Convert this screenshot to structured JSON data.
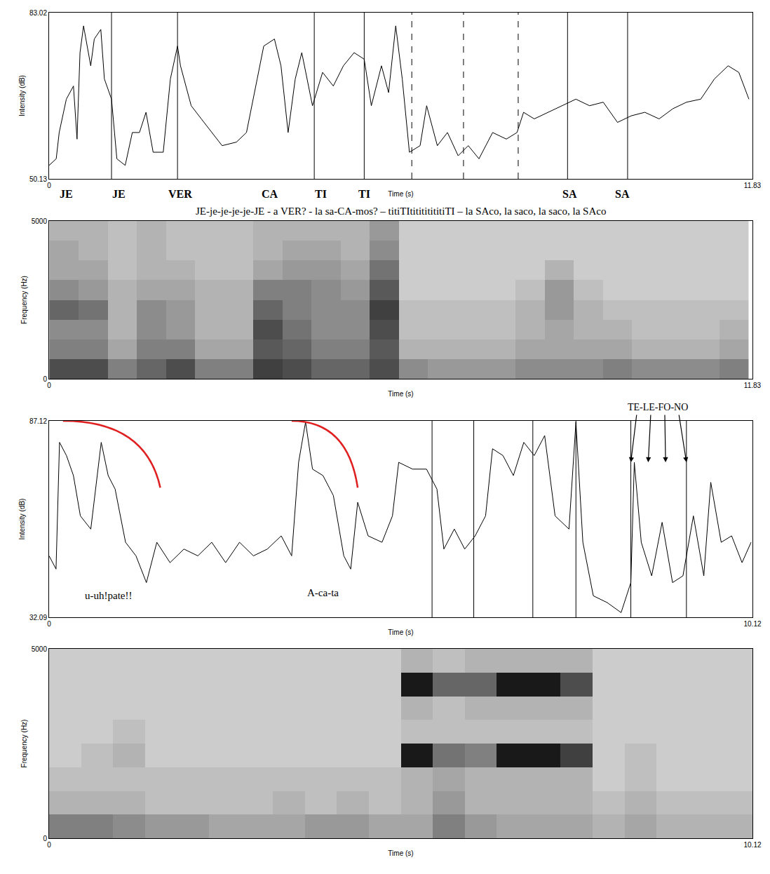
{
  "chart_data": [
    {
      "type": "line",
      "color": "#000000",
      "x": [
        0,
        0.12,
        0.17,
        0.29,
        0.41,
        0.47,
        0.52,
        0.58,
        0.7,
        0.76,
        0.87,
        0.93,
        1.05,
        1.14,
        1.28,
        1.4,
        1.52,
        1.63,
        1.75,
        1.92,
        2.04,
        2.16,
        2.21,
        2.39,
        2.56,
        2.74,
        2.91,
        3.15,
        3.32,
        3.5,
        3.61,
        3.79,
        3.9,
        4.02,
        4.14,
        4.25,
        4.43,
        4.6,
        4.78,
        4.95,
        5.13,
        5.3,
        5.42,
        5.59,
        5.71,
        5.83,
        5.94,
        6.06,
        6.24,
        6.35,
        6.53,
        6.7,
        6.88,
        7.05,
        7.23,
        7.46,
        7.69,
        7.87,
        7.98,
        8.16,
        8.39,
        8.62,
        8.86,
        9.09,
        9.32,
        9.56,
        9.79,
        10.02,
        10.26,
        10.49,
        10.72,
        10.96,
        11.19,
        11.42,
        11.6,
        11.77
      ],
      "values": [
        52.8,
        54.1,
        59.3,
        65.9,
        68.5,
        58.0,
        75.1,
        80.4,
        72.5,
        77.8,
        79.7,
        69.9,
        65.9,
        54.1,
        52.8,
        59.3,
        59.3,
        63.3,
        55.4,
        55.4,
        69.9,
        76.4,
        72.5,
        64.6,
        62.0,
        59.3,
        56.7,
        57.4,
        59.3,
        69.9,
        76.4,
        77.8,
        72.5,
        59.3,
        69.9,
        75.1,
        64.6,
        71.2,
        68.5,
        72.5,
        75.1,
        73.8,
        64.6,
        72.5,
        67.2,
        80.4,
        69.9,
        55.4,
        56.7,
        64.6,
        56.7,
        59.3,
        54.7,
        56.7,
        54.1,
        59.3,
        58.0,
        59.3,
        63.3,
        62.0,
        63.3,
        64.6,
        65.9,
        64.6,
        65.3,
        61.3,
        62.6,
        63.3,
        62.0,
        64.0,
        65.3,
        65.9,
        69.9,
        72.5,
        71.2,
        65.9
      ],
      "xlim": [
        0,
        11.83
      ],
      "ylim": [
        50.13,
        83.02
      ],
      "xticks": [
        0,
        11.83
      ],
      "yticks": [
        50.13,
        83.02
      ],
      "x_label": "Time (s)",
      "y_label": "Intensity (dB)",
      "boundaries": [
        {
          "x": 1.05,
          "line_style": "solid"
        },
        {
          "x": 2.16,
          "line_style": "solid"
        },
        {
          "x": 4.46,
          "line_style": "solid"
        },
        {
          "x": 5.3,
          "line_style": "solid"
        },
        {
          "x": 6.1,
          "line_style": "dashed"
        },
        {
          "x": 6.97,
          "line_style": "dashed"
        },
        {
          "x": 7.89,
          "line_style": "dashed"
        },
        {
          "x": 8.72,
          "line_style": "solid"
        },
        {
          "x": 9.73,
          "line_style": "solid"
        }
      ],
      "syllables": [
        {
          "x": 0.29,
          "text": "JE"
        },
        {
          "x": 1.17,
          "text": "JE"
        },
        {
          "x": 2.21,
          "text": "VER"
        },
        {
          "x": 3.71,
          "text": "CA"
        },
        {
          "x": 4.57,
          "text": "TI"
        },
        {
          "x": 5.3,
          "text": "TI"
        },
        {
          "x": 8.76,
          "text": "SA"
        },
        {
          "x": 9.64,
          "text": "SA"
        }
      ],
      "transcription": "JE-je-je-je-je-JE - a VER? - la sa-CA-mos? – titiTItitititititiTI – la SAco, la saco, la saco, la SAco"
    },
    {
      "type": "heatmap",
      "x": [
        0.25,
        0.74,
        1.23,
        1.72,
        2.21,
        2.7,
        3.19,
        3.68,
        4.17,
        4.66,
        5.15,
        5.64,
        6.13,
        6.62,
        7.11,
        7.6,
        8.09,
        8.58,
        9.07,
        9.56,
        10.05,
        10.54,
        11.03,
        11.52
      ],
      "y": [
        312.5,
        937.5,
        1562.5,
        2187.5,
        2812.5,
        3437.5,
        4062.5,
        4687.5
      ],
      "z": [
        [
          0.7,
          0.7,
          0.5,
          0.6,
          0.7,
          0.5,
          0.5,
          0.75,
          0.7,
          0.6,
          0.6,
          0.7,
          0.45,
          0.4,
          0.4,
          0.4,
          0.45,
          0.45,
          0.45,
          0.5,
          0.45,
          0.45,
          0.45,
          0.5
        ],
        [
          0.5,
          0.5,
          0.35,
          0.5,
          0.5,
          0.35,
          0.35,
          0.65,
          0.6,
          0.5,
          0.5,
          0.65,
          0.3,
          0.3,
          0.3,
          0.3,
          0.35,
          0.35,
          0.35,
          0.35,
          0.3,
          0.3,
          0.3,
          0.35
        ],
        [
          0.45,
          0.45,
          0.3,
          0.45,
          0.4,
          0.3,
          0.3,
          0.7,
          0.55,
          0.45,
          0.45,
          0.7,
          0.25,
          0.25,
          0.25,
          0.25,
          0.3,
          0.35,
          0.3,
          0.3,
          0.25,
          0.25,
          0.25,
          0.3
        ],
        [
          0.6,
          0.55,
          0.3,
          0.45,
          0.4,
          0.3,
          0.3,
          0.6,
          0.5,
          0.45,
          0.45,
          0.75,
          0.25,
          0.25,
          0.25,
          0.25,
          0.3,
          0.4,
          0.3,
          0.25,
          0.25,
          0.25,
          0.25,
          0.25
        ],
        [
          0.45,
          0.4,
          0.3,
          0.35,
          0.35,
          0.3,
          0.3,
          0.5,
          0.5,
          0.45,
          0.4,
          0.65,
          0.2,
          0.2,
          0.2,
          0.2,
          0.25,
          0.4,
          0.25,
          0.2,
          0.2,
          0.2,
          0.2,
          0.2
        ],
        [
          0.35,
          0.35,
          0.25,
          0.3,
          0.3,
          0.25,
          0.25,
          0.35,
          0.4,
          0.4,
          0.35,
          0.55,
          0.2,
          0.2,
          0.2,
          0.2,
          0.2,
          0.3,
          0.2,
          0.2,
          0.2,
          0.2,
          0.2,
          0.2
        ],
        [
          0.35,
          0.3,
          0.25,
          0.3,
          0.25,
          0.25,
          0.25,
          0.3,
          0.35,
          0.35,
          0.3,
          0.45,
          0.2,
          0.2,
          0.2,
          0.2,
          0.2,
          0.2,
          0.2,
          0.2,
          0.2,
          0.2,
          0.2,
          0.2
        ],
        [
          0.3,
          0.3,
          0.25,
          0.3,
          0.25,
          0.25,
          0.25,
          0.3,
          0.3,
          0.3,
          0.3,
          0.4,
          0.2,
          0.2,
          0.2,
          0.2,
          0.2,
          0.2,
          0.2,
          0.2,
          0.2,
          0.2,
          0.2,
          0.2
        ]
      ],
      "zlim": [
        0,
        1
      ],
      "xlim": [
        0,
        11.83
      ],
      "ylim": [
        0,
        5000
      ],
      "xticks": [
        0,
        11.83
      ],
      "yticks": [
        0,
        5000
      ],
      "x_label": "Time (s)",
      "y_label": "Frequency (Hz)"
    },
    {
      "type": "line",
      "color": "#000000",
      "x": [
        0,
        0.1,
        0.15,
        0.25,
        0.35,
        0.45,
        0.6,
        0.75,
        0.85,
        0.95,
        1.1,
        1.25,
        1.4,
        1.55,
        1.74,
        1.94,
        2.14,
        2.34,
        2.54,
        2.74,
        2.94,
        3.14,
        3.34,
        3.49,
        3.59,
        3.69,
        3.79,
        3.94,
        4.09,
        4.24,
        4.34,
        4.44,
        4.59,
        4.79,
        4.94,
        5.03,
        5.23,
        5.43,
        5.58,
        5.68,
        5.83,
        5.98,
        6.13,
        6.28,
        6.38,
        6.53,
        6.68,
        6.83,
        6.98,
        7.13,
        7.28,
        7.48,
        7.58,
        7.68,
        7.83,
        8.03,
        8.23,
        8.37,
        8.42,
        8.52,
        8.67,
        8.82,
        8.97,
        9.12,
        9.27,
        9.42,
        9.52,
        9.67,
        9.82,
        9.97,
        10.1
      ],
      "values": [
        49.3,
        45.6,
        81.1,
        77.4,
        71.8,
        60.5,
        56.8,
        81.1,
        71.8,
        68.0,
        53.1,
        49.3,
        41.8,
        53.1,
        47.4,
        51.2,
        49.3,
        53.1,
        47.4,
        53.1,
        49.3,
        51.2,
        54.9,
        49.3,
        75.5,
        86.8,
        73.6,
        71.8,
        66.2,
        49.3,
        45.6,
        64.3,
        54.9,
        53.1,
        60.5,
        75.5,
        73.6,
        73.6,
        68.0,
        51.2,
        56.8,
        51.2,
        54.9,
        60.5,
        79.3,
        77.4,
        71.8,
        81.1,
        77.4,
        83.0,
        60.5,
        56.8,
        86.8,
        53.1,
        38.1,
        36.2,
        33.4,
        41.8,
        75.5,
        53.1,
        43.7,
        58.7,
        41.8,
        43.7,
        60.5,
        43.7,
        69.9,
        53.1,
        54.9,
        47.4,
        53.1
      ],
      "xlim": [
        0,
        10.12
      ],
      "ylim": [
        32.09,
        87.12
      ],
      "xticks": [
        0,
        10.12
      ],
      "yticks": [
        32.09,
        87.12
      ],
      "x_label": "Time (s)",
      "y_label": "Intensity (dB)",
      "boundaries": [
        {
          "x": 5.51,
          "line_style": "solid"
        },
        {
          "x": 6.11,
          "line_style": "solid"
        },
        {
          "x": 6.96,
          "line_style": "solid"
        },
        {
          "x": 7.58,
          "line_style": "solid"
        },
        {
          "x": 8.37,
          "line_style": "solid"
        },
        {
          "x": 9.17,
          "line_style": "solid"
        }
      ],
      "annotations": [
        {
          "x": 0.85,
          "y": 38.1,
          "text": "u-uh!pate!!"
        },
        {
          "x": 3.94,
          "y": 39.0,
          "text": "A-ca-ta"
        }
      ],
      "curves": [
        {
          "x0": 0.2,
          "x1": 1.6,
          "y1": 68.4,
          "color": "#e02020"
        },
        {
          "x0": 3.49,
          "x1": 4.44,
          "y1": 68.4,
          "color": "#e02020"
        }
      ],
      "arrows": {
        "text": "TE-LE-FO-NO",
        "x": [
          8.37,
          8.62,
          8.87,
          9.17
        ],
        "y": 75.5
      }
    },
    {
      "type": "heatmap",
      "x": [
        0.23,
        0.69,
        1.15,
        1.61,
        2.07,
        2.53,
        2.99,
        3.45,
        3.91,
        4.37,
        4.83,
        5.29,
        5.75,
        6.21,
        6.67,
        7.13,
        7.59,
        8.05,
        8.51,
        8.97,
        9.43,
        9.89
      ],
      "y": [
        312.5,
        937.5,
        1562.5,
        2187.5,
        2812.5,
        3437.5,
        4062.5,
        4687.5
      ],
      "z": [
        [
          0.5,
          0.5,
          0.45,
          0.4,
          0.4,
          0.35,
          0.35,
          0.35,
          0.4,
          0.4,
          0.35,
          0.35,
          0.5,
          0.4,
          0.35,
          0.35,
          0.35,
          0.3,
          0.35,
          0.3,
          0.3,
          0.3
        ],
        [
          0.3,
          0.3,
          0.3,
          0.25,
          0.25,
          0.25,
          0.25,
          0.3,
          0.25,
          0.3,
          0.25,
          0.3,
          0.4,
          0.3,
          0.3,
          0.3,
          0.3,
          0.25,
          0.3,
          0.25,
          0.25,
          0.25
        ],
        [
          0.25,
          0.25,
          0.25,
          0.25,
          0.25,
          0.25,
          0.25,
          0.25,
          0.25,
          0.25,
          0.25,
          0.3,
          0.35,
          0.3,
          0.3,
          0.3,
          0.3,
          0.2,
          0.25,
          0.2,
          0.2,
          0.2
        ],
        [
          0.2,
          0.25,
          0.3,
          0.2,
          0.2,
          0.2,
          0.2,
          0.2,
          0.2,
          0.2,
          0.2,
          0.9,
          0.55,
          0.5,
          0.9,
          0.9,
          0.75,
          0.2,
          0.25,
          0.2,
          0.2,
          0.2
        ],
        [
          0.2,
          0.2,
          0.25,
          0.2,
          0.2,
          0.2,
          0.2,
          0.2,
          0.2,
          0.2,
          0.2,
          0.25,
          0.25,
          0.25,
          0.25,
          0.25,
          0.25,
          0.2,
          0.2,
          0.2,
          0.2,
          0.2
        ],
        [
          0.2,
          0.2,
          0.2,
          0.2,
          0.2,
          0.2,
          0.2,
          0.2,
          0.2,
          0.2,
          0.2,
          0.3,
          0.25,
          0.3,
          0.3,
          0.3,
          0.3,
          0.2,
          0.2,
          0.2,
          0.2,
          0.2
        ],
        [
          0.2,
          0.2,
          0.2,
          0.2,
          0.2,
          0.2,
          0.2,
          0.2,
          0.2,
          0.2,
          0.2,
          0.9,
          0.6,
          0.6,
          0.9,
          0.9,
          0.7,
          0.2,
          0.2,
          0.2,
          0.2,
          0.2
        ],
        [
          0.2,
          0.2,
          0.2,
          0.2,
          0.2,
          0.2,
          0.2,
          0.2,
          0.2,
          0.2,
          0.2,
          0.3,
          0.25,
          0.3,
          0.3,
          0.3,
          0.3,
          0.2,
          0.2,
          0.2,
          0.2,
          0.2
        ]
      ],
      "zlim": [
        0,
        1
      ],
      "xlim": [
        0,
        10.12
      ],
      "ylim": [
        0,
        5000
      ],
      "xticks": [
        0,
        10.12
      ],
      "yticks": [
        0,
        5000
      ],
      "x_label": "Time (s)",
      "y_label": "Frequency (Hz)"
    }
  ]
}
